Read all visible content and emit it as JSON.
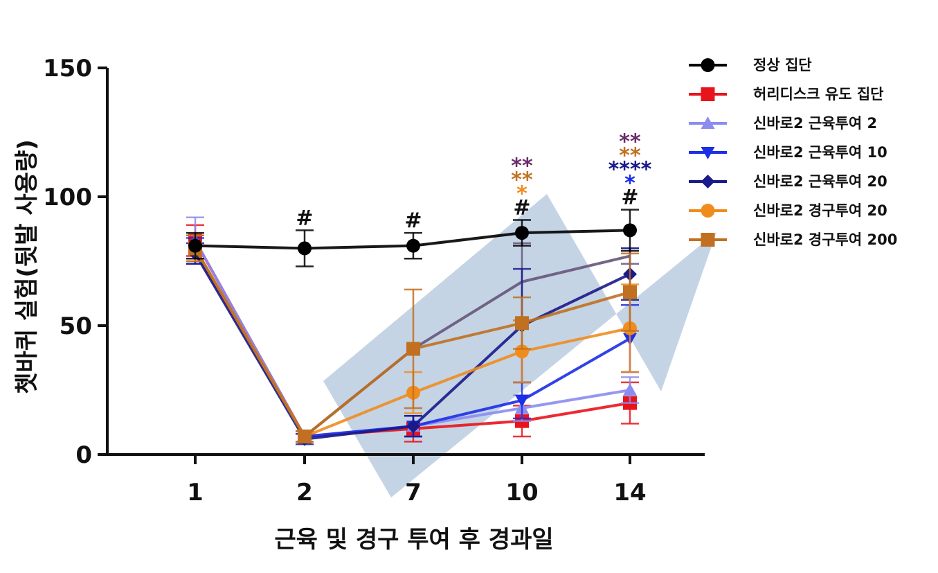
{
  "chart_data": {
    "type": "line",
    "xlabel": "근육 및 경구 투여 후 경과일",
    "ylabel": "쳇바퀴 실험(뒷발 사용량)",
    "categories": [
      "1",
      "2",
      "7",
      "10",
      "14"
    ],
    "ylim": [
      0,
      150
    ],
    "yticks": [
      0,
      50,
      100,
      150
    ],
    "grid": false,
    "legend_position": "right",
    "background_arrow_color": "#9db8d3",
    "series": [
      {
        "name": "정상 집단",
        "color": "#000000",
        "marker": "circle",
        "values": [
          81,
          80,
          81,
          86,
          87
        ],
        "error": [
          5,
          7,
          5,
          5,
          8
        ]
      },
      {
        "name": "허리디스크 유도 집단",
        "color": "#e8141c",
        "marker": "square",
        "values": [
          83,
          7,
          10,
          13,
          20
        ],
        "error": [
          6,
          2,
          5,
          6,
          8
        ]
      },
      {
        "name": "신바로2 근육투여 2",
        "color": "#8c8cf0",
        "marker": "triangle-up",
        "values": [
          83,
          7,
          11,
          18,
          25
        ],
        "error": [
          9,
          2,
          4,
          5,
          5
        ]
      },
      {
        "name": "신바로2 근육투여 10",
        "color": "#1c2ee6",
        "marker": "triangle-down",
        "values": [
          79,
          7,
          11,
          21,
          45
        ],
        "error": [
          5,
          2,
          4,
          7,
          13
        ]
      },
      {
        "name": "신바로2 근육투여 20",
        "color": "#1a1a8a",
        "marker": "diamond",
        "values": [
          78,
          6,
          11,
          50,
          70
        ],
        "error": [
          4,
          2,
          4,
          22,
          10
        ]
      },
      {
        "name": "신바로2 경구투여 20",
        "color": "#f08c1e",
        "marker": "circle",
        "values": [
          80,
          7,
          24,
          40,
          49
        ],
        "error": [
          5,
          2,
          8,
          12,
          17
        ]
      },
      {
        "name": "신바로2 경구투여 200",
        "color": "#c07020",
        "marker": "square",
        "values": [
          80,
          7,
          41,
          51,
          63
        ],
        "error": [
          5,
          2,
          23,
          10,
          15
        ]
      }
    ],
    "extra_series": [
      {
        "color": "#66557a",
        "values": [
          null,
          7,
          41,
          67,
          77
        ],
        "error": [
          null,
          null,
          null,
          15,
          3
        ]
      }
    ],
    "annotations": [
      {
        "category": "2",
        "text": "#",
        "color": "#111111"
      },
      {
        "category": "7",
        "text": "#",
        "color": "#111111"
      },
      {
        "category": "10",
        "lines": [
          {
            "text": "**",
            "color": "#6a2a6a"
          },
          {
            "text": "**",
            "color": "#c07020"
          },
          {
            "text": "*",
            "color": "#f08c1e"
          },
          {
            "text": "#",
            "color": "#111111"
          }
        ]
      },
      {
        "category": "14",
        "lines": [
          {
            "text": "**",
            "color": "#6a2a6a"
          },
          {
            "text": "**",
            "color": "#c07020"
          },
          {
            "text": "****",
            "color": "#1a1a8a"
          },
          {
            "text": "*",
            "color": "#1c2ee6"
          },
          {
            "text": "#",
            "color": "#111111"
          }
        ]
      }
    ]
  }
}
